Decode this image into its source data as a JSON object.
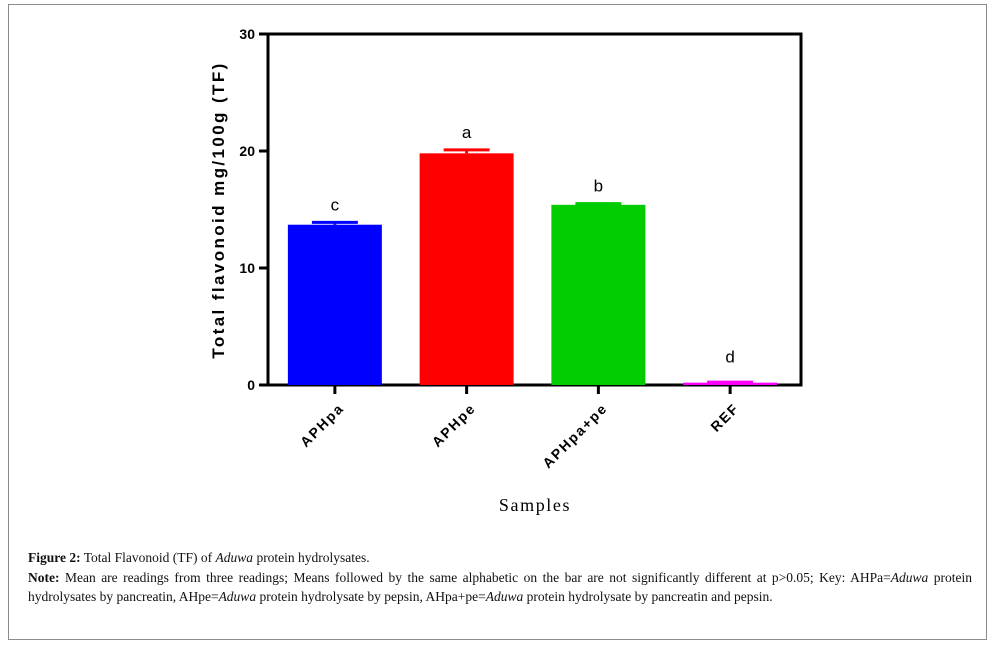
{
  "chart_data": {
    "type": "bar",
    "categories": [
      "APHpa",
      "APHpe",
      "APHpa+pe",
      "REF"
    ],
    "values": [
      13.7,
      19.8,
      15.4,
      0.2
    ],
    "errors": [
      0.2,
      0.3,
      0.1,
      0.05
    ],
    "bar_labels": [
      "c",
      "a",
      "b",
      "d"
    ],
    "colors": [
      "#0000ff",
      "#ff0000",
      "#00cc00",
      "#ff00ff"
    ],
    "ylabel": "Total flavonoid mg/100g (TF)",
    "xlabel": "Samples",
    "ylim": [
      0,
      30
    ],
    "yticks": [
      "0",
      "10",
      "20",
      "30"
    ],
    "grid": false,
    "legend": "none"
  },
  "caption": {
    "figure_label": "Figure 2:",
    "title_before": " Total Flavonoid (TF) of ",
    "title_italic": "Aduwa",
    "title_after": " protein hydrolysates.",
    "note_label": "Note:",
    "note_seg1": " Mean are readings from three readings; Means followed by the same alphabetic on the bar are not significantly different at p>0.05; Key: AHPa=",
    "note_italic1": "Aduwa",
    "note_seg2": " protein hydrolysates by pancreatin, AHpe=",
    "note_italic2": "Aduwa",
    "note_seg3": " protein hydrolysate by pepsin, AHpa+pe=",
    "note_italic3": "Aduwa",
    "note_seg4": " protein hydrolysate by pancreatin and pepsin."
  }
}
